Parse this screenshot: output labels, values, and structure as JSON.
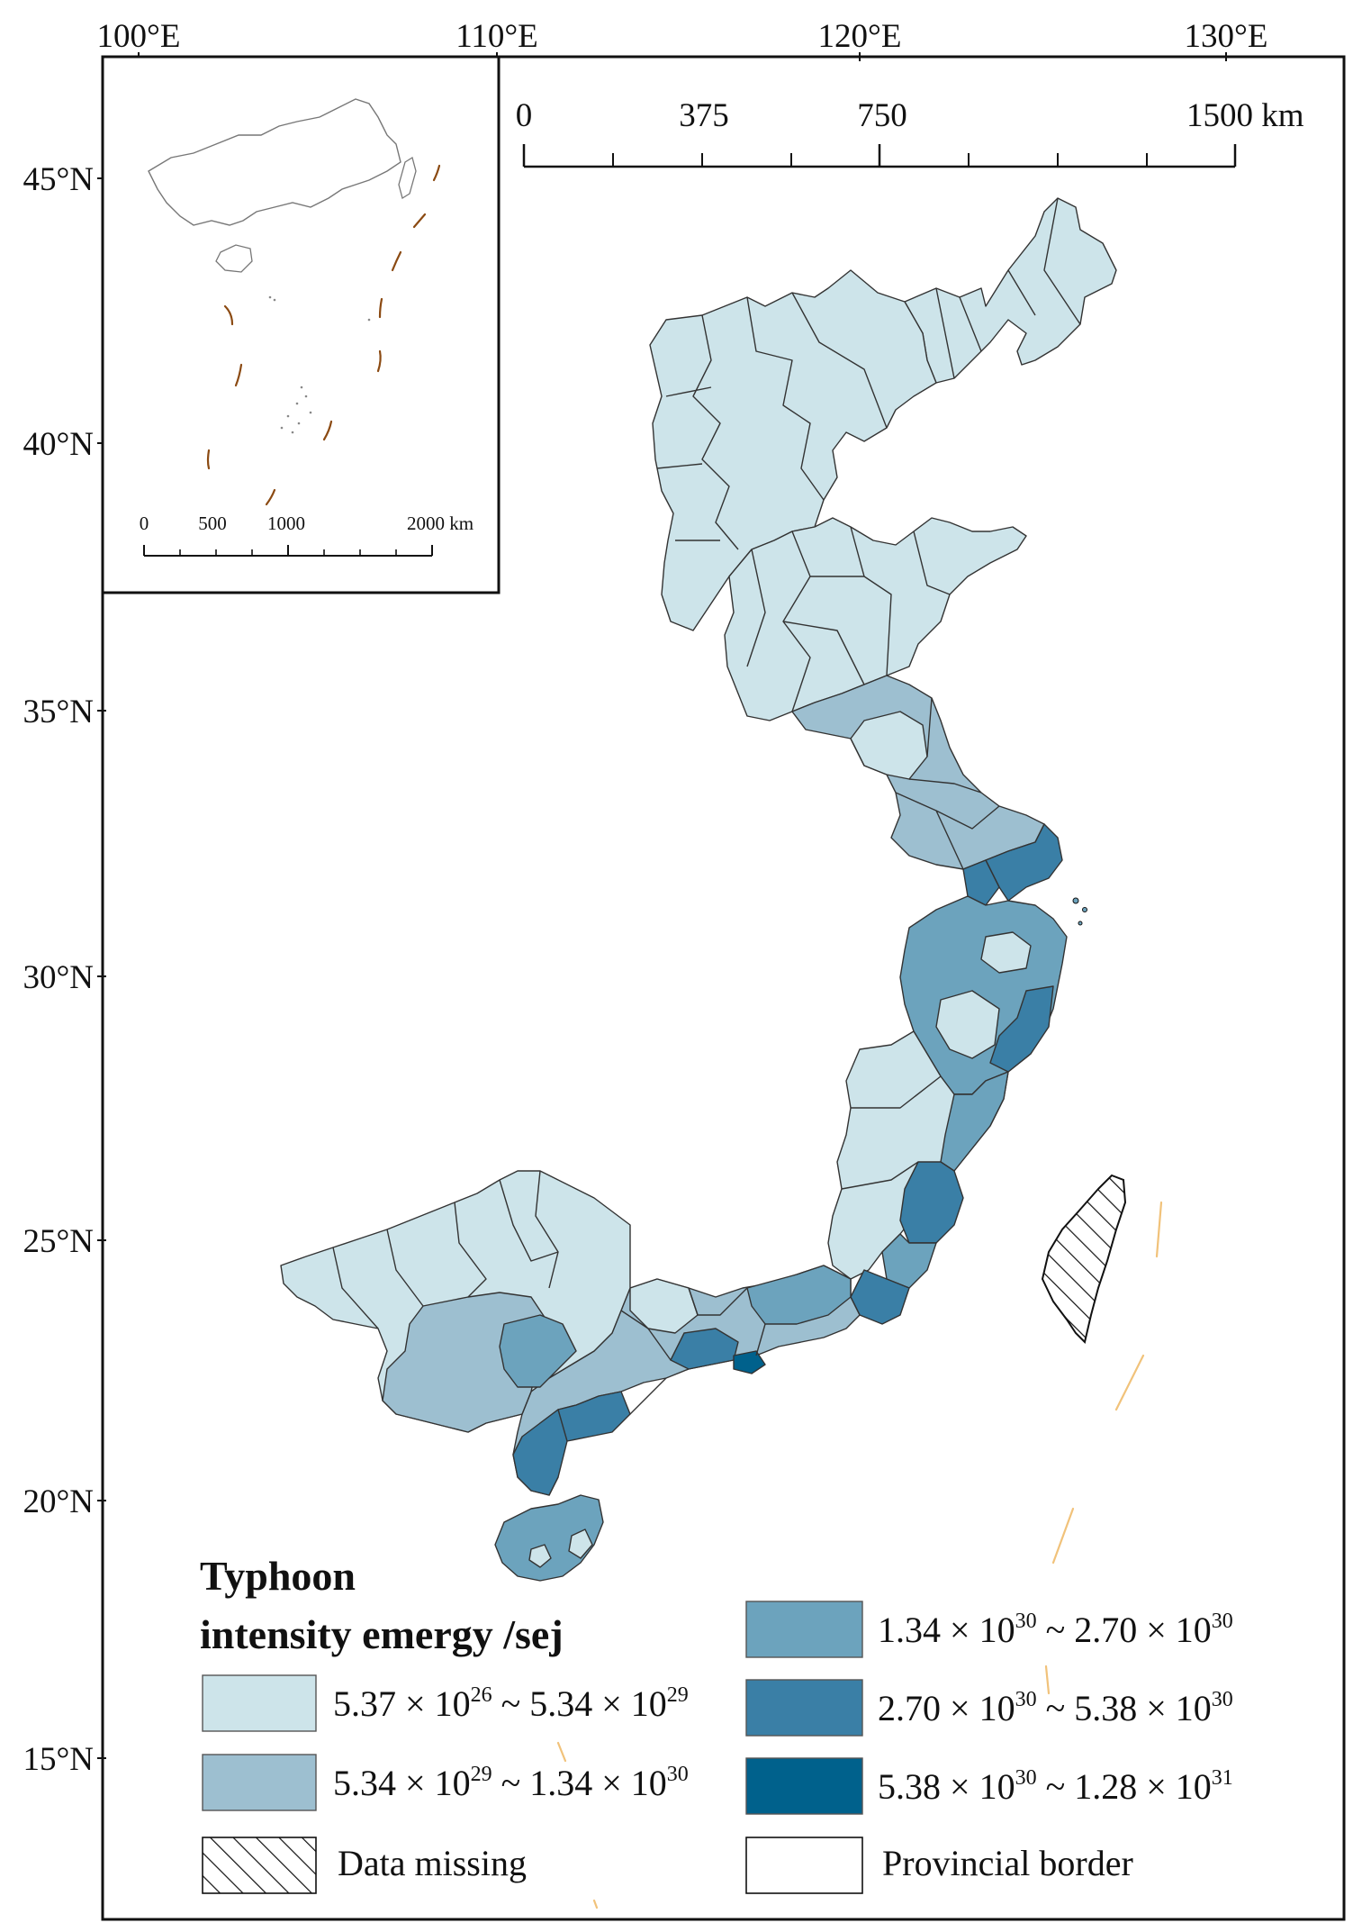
{
  "map": {
    "lon_ticks": [
      "100°E",
      "110°E",
      "120°E",
      "130°E"
    ],
    "lat_ticks": [
      "45°N",
      "40°N",
      "35°N",
      "30°N",
      "25°N",
      "20°N",
      "15°N"
    ],
    "scale_bar": {
      "labels": [
        "0",
        "375",
        "750",
        "1500 km"
      ]
    },
    "inset": {
      "scale_bar_labels": [
        "0",
        "500",
        "1000",
        "2000 km"
      ]
    }
  },
  "legend": {
    "title_line1": "Typhoon",
    "title_line2": "intensity emergy /sej",
    "classes": [
      {
        "id": "c1",
        "color": "#cde4ea",
        "from_mant": "5.37",
        "from_exp": "26",
        "to_mant": "5.34",
        "to_exp": "29"
      },
      {
        "id": "c2",
        "color": "#9dbfd0",
        "from_mant": "5.34",
        "from_exp": "29",
        "to_mant": "1.34",
        "to_exp": "30"
      },
      {
        "id": "c3",
        "color": "#6ca3bd",
        "from_mant": "1.34",
        "from_exp": "30",
        "to_mant": "2.70",
        "to_exp": "30"
      },
      {
        "id": "c4",
        "color": "#3a7fa6",
        "from_mant": "2.70",
        "from_exp": "30",
        "to_mant": "5.38",
        "to_exp": "30"
      },
      {
        "id": "c5",
        "color": "#00618c",
        "from_mant": "5.38",
        "from_exp": "30",
        "to_mant": "1.28",
        "to_exp": "31"
      }
    ],
    "data_missing_label": "Data missing",
    "provincial_border_label": "Provincial border",
    "times_sign": "×",
    "range_sign": "~"
  },
  "colors": {
    "frame": "#111111",
    "nine_dash": "#8b4a12",
    "faint_dash": "#f1c27a"
  }
}
